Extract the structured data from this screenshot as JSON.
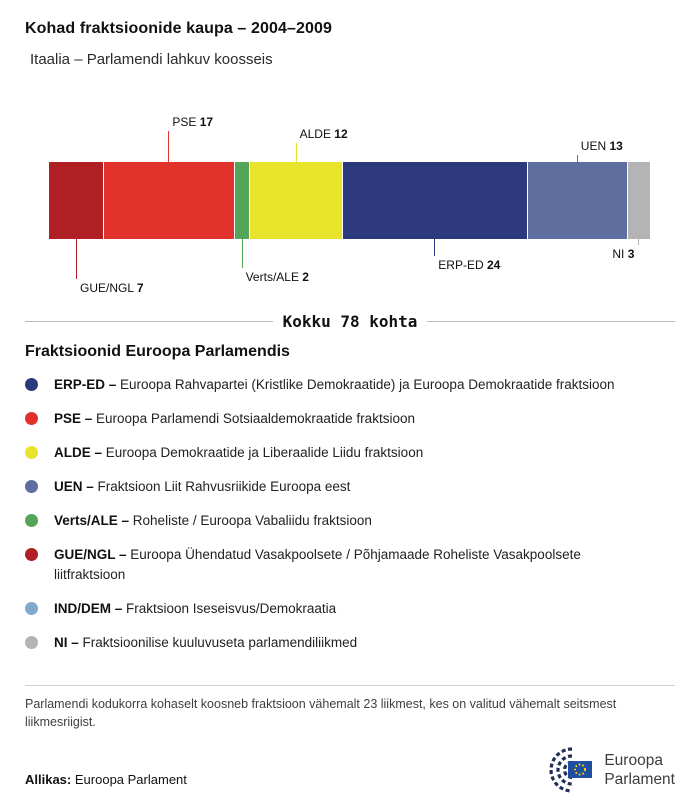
{
  "header": {
    "title": "Kohad fraktsioonide kaupa – 2004–2009",
    "subtitle": "Itaalia – Parlamendi lahkuv koosseis"
  },
  "chart_data": {
    "type": "bar",
    "title": "Kohad fraktsioonide kaupa – 2004–2009",
    "subtitle": "Itaalia – Parlamendi lahkuv koosseis",
    "total": 78,
    "total_label": "Kokku 78 kohta",
    "orientation": "horizontal-stacked",
    "segments": [
      {
        "name": "GUE/NGL",
        "value": 7,
        "color": "#b01f24",
        "side": "below",
        "tier": 4,
        "align": "left"
      },
      {
        "name": "PSE",
        "value": 17,
        "color": "#e0312b",
        "side": "above",
        "tier": 3,
        "align": "left"
      },
      {
        "name": "Verts/ALE",
        "value": 2,
        "color": "#54a559",
        "side": "below",
        "tier": 3,
        "align": "left"
      },
      {
        "name": "ALDE",
        "value": 12,
        "color": "#e8e32b",
        "side": "above",
        "tier": 2,
        "align": "left"
      },
      {
        "name": "ERP-ED",
        "value": 24,
        "color": "#2c3a7d",
        "side": "below",
        "tier": 2,
        "align": "left"
      },
      {
        "name": "UEN",
        "value": 13,
        "color": "#5e6e9e",
        "side": "above",
        "tier": 1,
        "align": "left"
      },
      {
        "name": "NI",
        "value": 3,
        "color": "#b4b4b4",
        "side": "below",
        "tier": 1,
        "align": "right"
      }
    ]
  },
  "legend": {
    "heading": "Fraktsioonid Euroopa Parlamendis",
    "items": [
      {
        "abbr": "ERP-ED –",
        "desc": "Euroopa Rahvapartei (Kristlike Demokraatide) ja Euroopa Demokraatide fraktsioon",
        "color": "#2c3a7d"
      },
      {
        "abbr": "PSE –",
        "desc": "Euroopa Parlamendi Sotsiaaldemokraatide fraktsioon",
        "color": "#e0312b"
      },
      {
        "abbr": "ALDE –",
        "desc": "Euroopa Demokraatide ja Liberaalide Liidu fraktsioon",
        "color": "#e8e32b"
      },
      {
        "abbr": "UEN –",
        "desc": "Fraktsioon Liit Rahvusriikide Euroopa eest",
        "color": "#5e6e9e"
      },
      {
        "abbr": "Verts/ALE –",
        "desc": "Roheliste / Euroopa Vabaliidu fraktsioon",
        "color": "#54a559"
      },
      {
        "abbr": "GUE/NGL –",
        "desc": "Euroopa Ühendatud Vasakpoolsete / Põhjamaade Roheliste Vasakpoolsete liitfraktsioon",
        "color": "#b01f24"
      },
      {
        "abbr": "IND/DEM –",
        "desc": "Fraktsioon Iseseisvus/Demokraatia",
        "color": "#82aacd"
      },
      {
        "abbr": "NI –",
        "desc": "Fraktsioonilise kuuluvuseta parlamendiliikmed",
        "color": "#b4b4b4"
      }
    ]
  },
  "footer": {
    "note": "Parlamendi kodukorra kohaselt koosneb fraktsioon vähemalt 23 liikmest, kes on valitud vähemalt seitsmest liikmesriigist.",
    "source_label": "Allikas:",
    "source": "Euroopa Parlament",
    "logo_line1": "Euroopa",
    "logo_line2": "Parlament"
  }
}
